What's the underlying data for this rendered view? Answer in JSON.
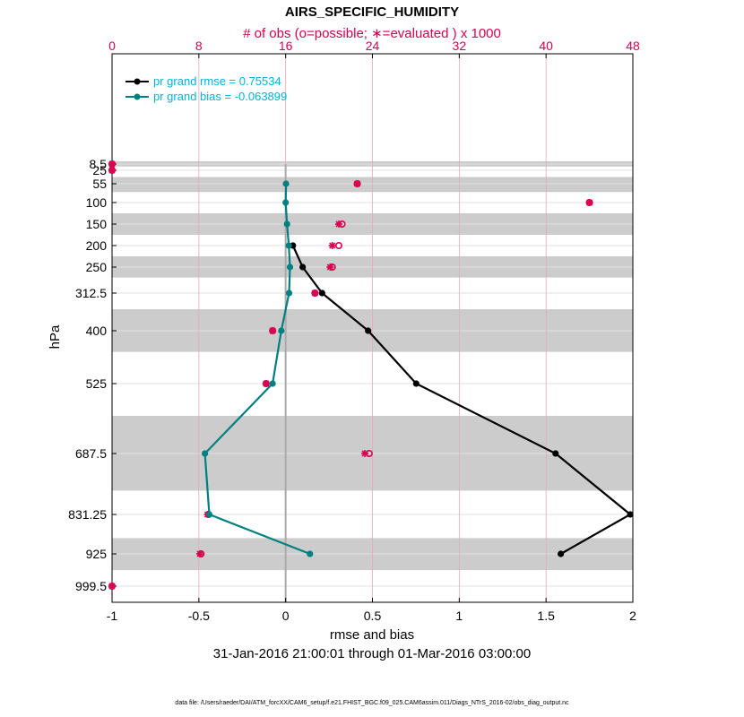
{
  "chart_data": {
    "type": "line",
    "title": "AIRS_SPECIFIC_HUMIDITY",
    "top_axis_title": "# of obs (o=possible; ∗=evaluated ) x 1000",
    "xlabel": "rmse and bias",
    "ylabel": "hPa",
    "subtitle": "31-Jan-2016 21:00:01 through 01-Mar-2016 03:00:00",
    "footnote": "data file: /Users/raeder/DAI/ATM_forcXX/CAM6_setup/f.e21.FHIST_BGC.f09_025.CAM6assim.011/Diags_NTrS_2016-02/obs_diag_output.nc",
    "xlim": [
      -1,
      2
    ],
    "x_ticks": [
      "-1",
      "-0.5",
      "0",
      "0.5",
      "1",
      "1.5",
      "2"
    ],
    "top_xlim": [
      0,
      48
    ],
    "top_ticks": [
      "0",
      "8",
      "16",
      "24",
      "32",
      "40",
      "48"
    ],
    "levels": [
      "8.5",
      "25",
      "55",
      "100",
      "150",
      "200",
      "250",
      "312.5",
      "400",
      "525",
      "687.5",
      "831.25",
      "925",
      "999.5"
    ],
    "level_values": [
      8.5,
      25,
      55,
      100,
      150,
      200,
      250,
      312.5,
      400,
      525,
      687.5,
      831.25,
      925,
      999.5
    ],
    "shaded_layers": [
      [
        0,
        15
      ],
      [
        40,
        75
      ],
      [
        125,
        175
      ],
      [
        225,
        275
      ],
      [
        350,
        450
      ],
      [
        600,
        775
      ],
      [
        887.5,
        962.5
      ]
    ],
    "series": [
      {
        "name": "pr grand rmse = 0.75534",
        "color": "#000000",
        "points": [
          [
            0.042,
            200
          ],
          [
            0.098,
            250
          ],
          [
            0.21,
            312.5
          ],
          [
            0.475,
            400
          ],
          [
            0.752,
            525
          ],
          [
            1.555,
            687.5
          ],
          [
            1.985,
            831.25
          ],
          [
            1.585,
            925
          ]
        ]
      },
      {
        "name": "pr grand bias = -0.063899",
        "color": "#008080",
        "points": [
          [
            0.002,
            55
          ],
          [
            0.0,
            100
          ],
          [
            0.008,
            150
          ],
          [
            0.018,
            200
          ],
          [
            0.025,
            250
          ],
          [
            0.02,
            312.5
          ],
          [
            -0.025,
            400
          ],
          [
            -0.075,
            525
          ],
          [
            -0.465,
            687.5
          ],
          [
            -0.44,
            831.25
          ],
          [
            0.14,
            925
          ]
        ]
      }
    ],
    "obs_counts": {
      "color": "#d8004f",
      "points": [
        {
          "level": 8.5,
          "possible": 0.0,
          "evaluated": 0.0
        },
        {
          "level": 25,
          "possible": 0.0,
          "evaluated": 0.0
        },
        {
          "level": 55,
          "possible": 22.6,
          "evaluated": 22.6
        },
        {
          "level": 100,
          "possible": 44.0,
          "evaluated": 44.0
        },
        {
          "level": 150,
          "possible": 21.2,
          "evaluated": 20.9
        },
        {
          "level": 200,
          "possible": 20.9,
          "evaluated": 20.3
        },
        {
          "level": 250,
          "possible": 20.3,
          "evaluated": 20.1
        },
        {
          "level": 312.5,
          "possible": 18.7,
          "evaluated": 18.7
        },
        {
          "level": 400,
          "possible": 14.8,
          "evaluated": 14.8
        },
        {
          "level": 525,
          "possible": 14.2,
          "evaluated": 14.2
        },
        {
          "level": 687.5,
          "possible": 23.7,
          "evaluated": 23.3
        },
        {
          "level": 831.25,
          "possible": 8.9,
          "evaluated": 8.8
        },
        {
          "level": 925,
          "possible": 8.2,
          "evaluated": 8.1
        },
        {
          "level": 999.5,
          "possible": 0.0,
          "evaluated": 0.0
        }
      ]
    }
  }
}
